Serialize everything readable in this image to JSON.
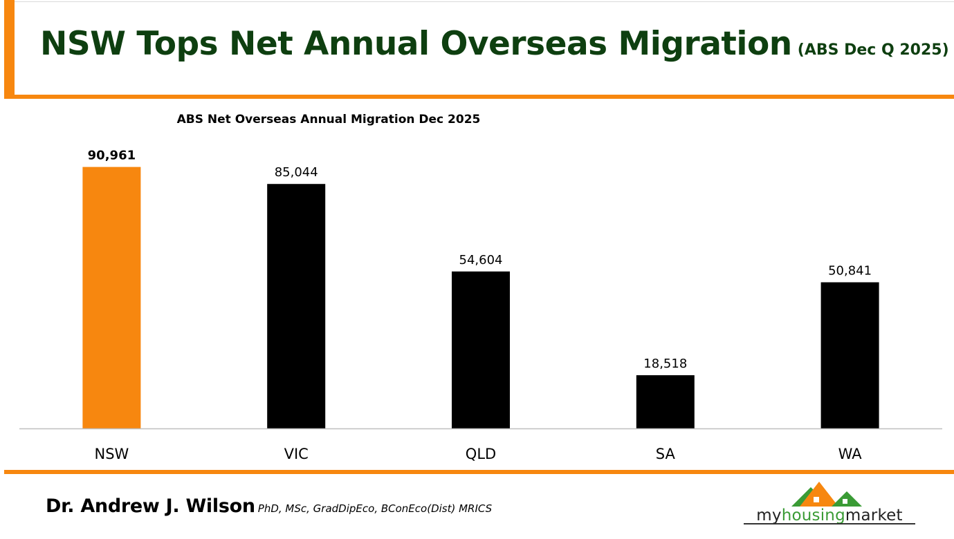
{
  "header": {
    "title": "NSW Tops Net Annual Overseas Migration",
    "subtitle": "(ABS Dec Q 2025)"
  },
  "footer": {
    "author_name": "Dr. Andrew J. Wilson",
    "author_quals": "PhD, MSc, GradDipEco, BConEco(Dist) MRICS",
    "logo_text_pre": "my",
    "logo_text_mid": "housing",
    "logo_text_post": "market"
  },
  "colors": {
    "accent": "#F7870F",
    "title": "#0E3F10",
    "bar_default": "#000000",
    "bar_highlight": "#F7870F",
    "logo_green": "#3A9B35"
  },
  "chart_data": {
    "type": "bar",
    "title": "ABS Net Overseas Annual Migration Dec 2025",
    "categories": [
      "NSW",
      "VIC",
      "QLD",
      "SA",
      "WA"
    ],
    "values": [
      90961,
      85044,
      54604,
      18518,
      50841
    ],
    "value_labels": [
      "90,961",
      "85,044",
      "54,604",
      "18,518",
      "50,841"
    ],
    "highlight_category": "NSW",
    "ylim": [
      0,
      100000
    ],
    "grid": false,
    "legend": "none"
  }
}
